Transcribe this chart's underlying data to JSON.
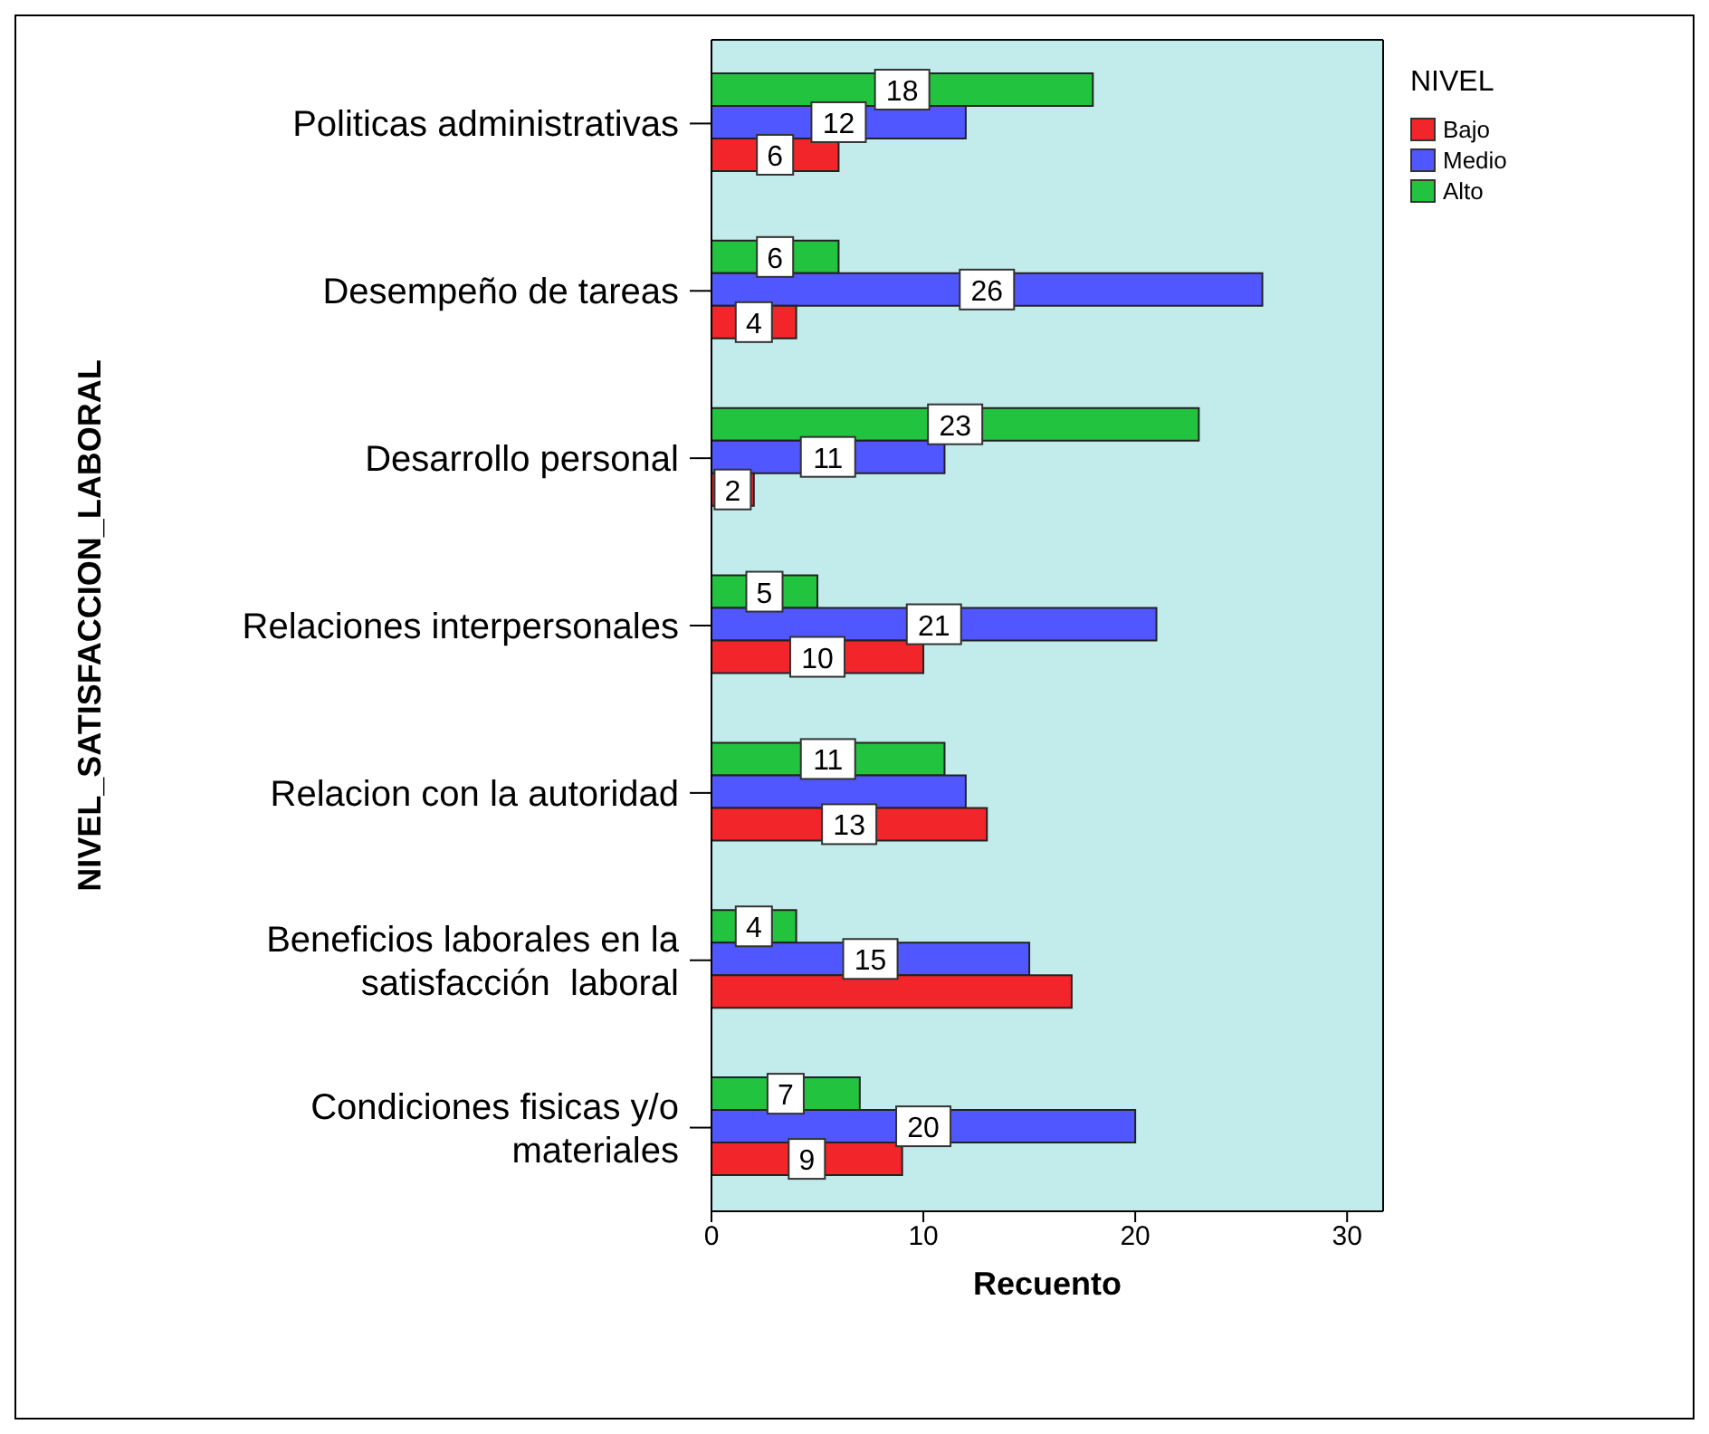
{
  "chart_data": {
    "type": "bar",
    "orientation": "horizontal",
    "ylabel": "NIVEL_SATISFACCION_LABORAL",
    "xlabel": "Recuento",
    "legend_title": "NIVEL",
    "legend": "top right",
    "grid": false,
    "categories": [
      "Politicas administrativas",
      "Desempeño de tareas",
      "Desarrollo personal",
      "Relaciones interpersonales",
      "Relacion con la autoridad",
      "Beneficios laborales en la\nsatisfacción  laboral",
      "Condiciones fisicas y/o\nmateriales"
    ],
    "xlim": [
      0,
      31.7
    ],
    "xticks": [
      0,
      10,
      20,
      30
    ],
    "series": [
      {
        "name": "Bajo",
        "color": "#f2262a",
        "values": [
          6,
          4,
          2,
          10,
          13,
          17,
          9
        ],
        "value_labels": [
          "6",
          "4",
          "2",
          "10",
          "13",
          null,
          "9"
        ]
      },
      {
        "name": "Medio",
        "color": "#5057ff",
        "values": [
          12,
          26,
          11,
          21,
          12,
          15,
          20
        ],
        "value_labels": [
          "12",
          "26",
          "11",
          "21",
          null,
          "15",
          "20"
        ]
      },
      {
        "name": "Alto",
        "color": "#22c33e",
        "values": [
          18,
          6,
          23,
          5,
          11,
          4,
          7
        ],
        "value_labels": [
          "18",
          "6",
          "23",
          "5",
          "11",
          "4",
          "7"
        ]
      }
    ]
  }
}
